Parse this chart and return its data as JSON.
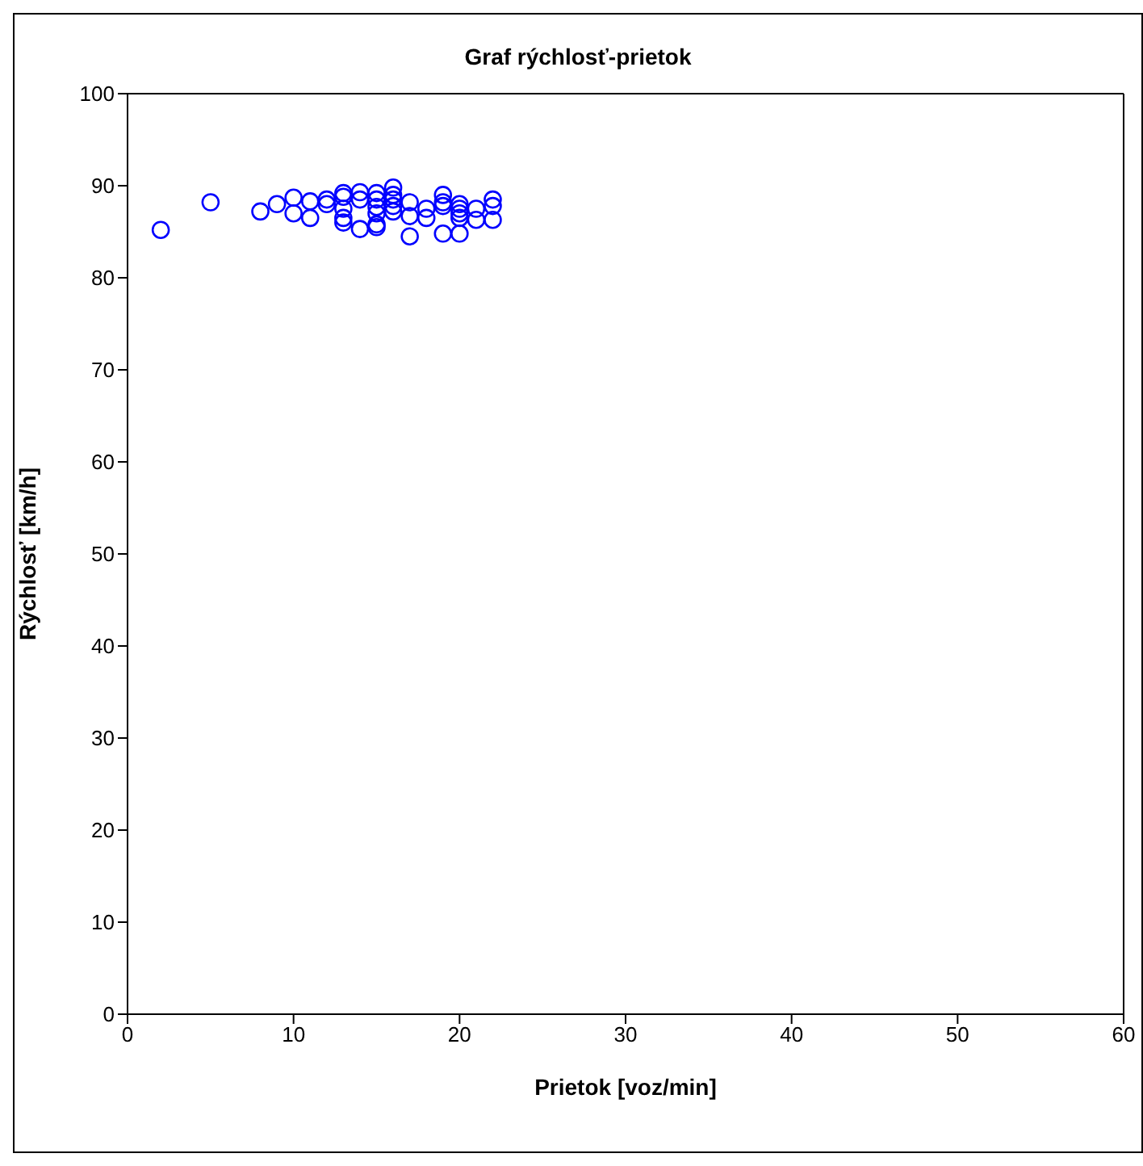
{
  "chart_data": {
    "type": "scatter",
    "title": "Graf rýchlosť-prietok",
    "xlabel": "Prietok [voz/min]",
    "ylabel": "Rýchlosť [km/h]",
    "xlim": [
      0,
      60
    ],
    "xticks": [
      0,
      10,
      20,
      30,
      40,
      50,
      60
    ],
    "ylim": [
      0,
      100
    ],
    "yticks": [
      0,
      10,
      20,
      30,
      40,
      50,
      60,
      70,
      80,
      90,
      100
    ],
    "grid": false,
    "legend": false,
    "marker": "circle",
    "series": [
      {
        "color": "#0000ff",
        "x": [
          2,
          5,
          8,
          9,
          10,
          10,
          11,
          11,
          12,
          12,
          13,
          13,
          13,
          13,
          13,
          14,
          14,
          14,
          15,
          15,
          15,
          15,
          15,
          15,
          16,
          16,
          16,
          16,
          16,
          17,
          17,
          17,
          18,
          18,
          19,
          19,
          19,
          19,
          20,
          20,
          20,
          20,
          20,
          21,
          21,
          22,
          22,
          22
        ],
        "values": [
          85.2,
          88.2,
          87.2,
          88,
          88.7,
          87,
          88.3,
          86.5,
          88.5,
          88,
          89.2,
          88.8,
          87.5,
          86.5,
          86,
          89.3,
          88.5,
          85.3,
          89.2,
          88.5,
          87.7,
          87,
          85.8,
          85.5,
          89.8,
          89,
          88.5,
          87.8,
          87.2,
          88.2,
          86.7,
          84.5,
          87.5,
          86.5,
          89,
          88.2,
          87.8,
          84.8,
          88,
          87.5,
          87,
          86.5,
          84.8,
          87.5,
          86.3,
          88.5,
          87.8,
          86.3
        ]
      }
    ]
  }
}
